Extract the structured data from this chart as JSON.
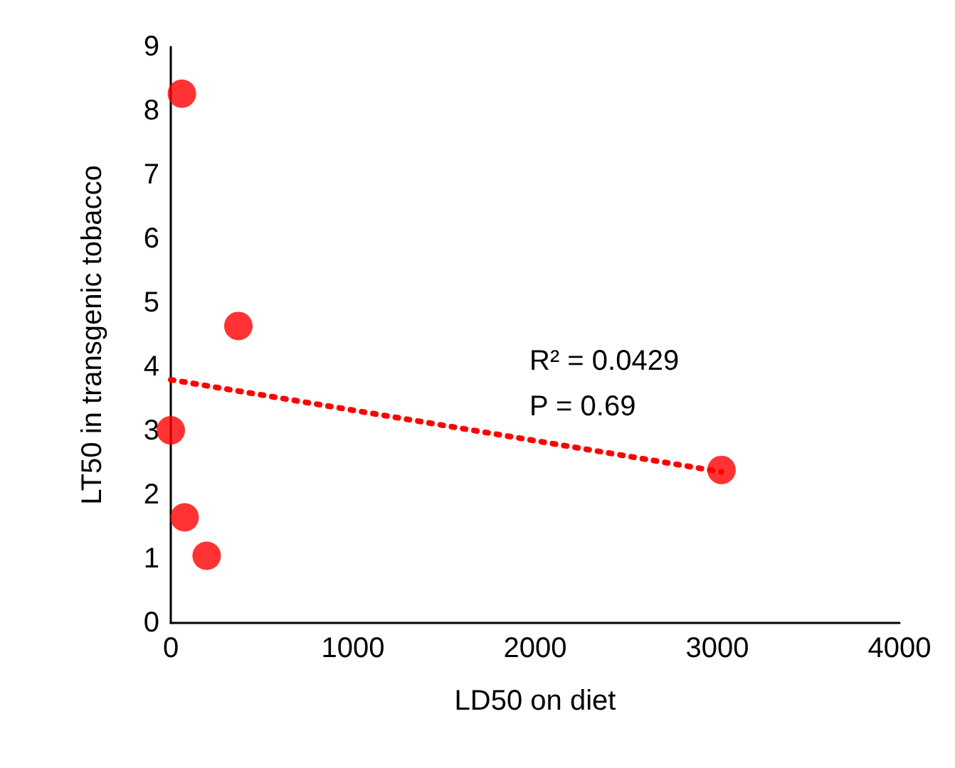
{
  "chart_data": {
    "type": "scatter",
    "xlabel": "LD50 on diet",
    "ylabel": "LT50 in transgenic tobacco",
    "x": [
      61,
      371,
      0,
      76,
      197,
      3023
    ],
    "series": [
      {
        "color": "#ff0000",
        "values": [
          8.27,
          4.64,
          3.01,
          1.65,
          1.05,
          2.39
        ],
        "marker": "circle"
      },
      {
        "type": "line",
        "color": "#ff0000",
        "x": [
          0,
          3023
        ],
        "values": [
          3.8,
          2.36
        ],
        "line_style": "dotted",
        "marker": "none"
      }
    ],
    "xlim": [
      0,
      4000
    ],
    "xticks": [
      0,
      1000,
      2000,
      3000,
      4000
    ],
    "ylim": [
      0,
      9
    ],
    "yticks": [
      0,
      1,
      2,
      3,
      4,
      5,
      6,
      7,
      8,
      9
    ],
    "annotations": [
      "R² = 0.0429",
      "P = 0.69"
    ]
  }
}
